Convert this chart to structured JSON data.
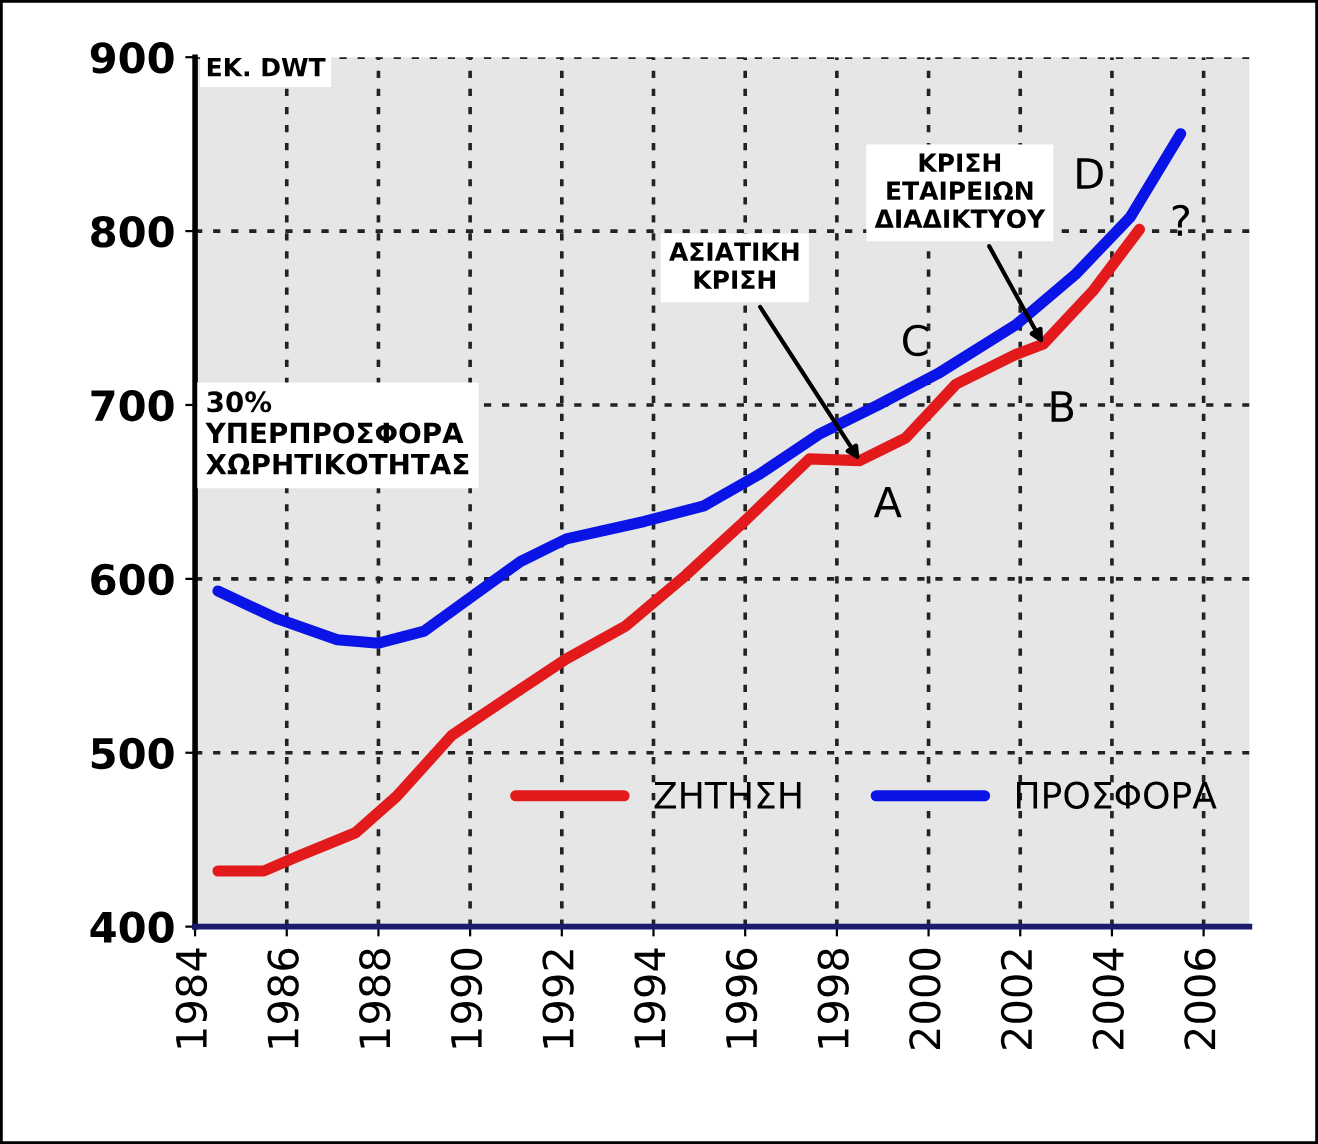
{
  "chart_data": {
    "type": "line",
    "ylabel": "ΕΚ. DWT",
    "xlim": [
      1984,
      2007
    ],
    "ylim": [
      400,
      900
    ],
    "xticks": [
      1984,
      1986,
      1988,
      1990,
      1992,
      1994,
      1996,
      1998,
      2000,
      2002,
      2004,
      2006
    ],
    "yticks": [
      400,
      500,
      600,
      700,
      800,
      900
    ],
    "grid": true,
    "legend": "bottom right",
    "line_style": "solid",
    "marker": "none",
    "series": [
      {
        "name": "ΖΗΤΗΣΗ",
        "color": "#e31a1c",
        "x": [
          1984.5,
          1985.5,
          1986.2,
          1987.5,
          1988.4,
          1989.6,
          1990.9,
          1992.1,
          1993.4,
          1994.7,
          1995.9,
          1997.4,
          1998.5,
          1999.5,
          2000.6,
          2001.9,
          2002.5,
          2003.6,
          2004.6
        ],
        "values": [
          432,
          432,
          440,
          454,
          475,
          510,
          533,
          554,
          573,
          602,
          631,
          669,
          668,
          681,
          712,
          729,
          735,
          766,
          801
        ]
      },
      {
        "name": "ΠΡΟΣΦΟΡΑ",
        "color": "#0a14e6",
        "x": [
          1984.5,
          1985.8,
          1987.1,
          1988,
          1989,
          1990.1,
          1991.1,
          1992.1,
          1993.8,
          1995.1,
          1996.3,
          1997.6,
          1998.9,
          2000.2,
          2001.9,
          2003.2,
          2004.4,
          2005.5
        ],
        "values": [
          593,
          577,
          565,
          563,
          570,
          591,
          610,
          623,
          633,
          642,
          660,
          683,
          700,
          718,
          746,
          775,
          808,
          856
        ]
      }
    ],
    "annotations": [
      "30%\nΥΠΕΡΠΡΟΣΦΟΡΑ\nΧΩΡΗΤΙΚΟΤΗΤΑΣ",
      {
        "text": "ΑΣΙΑΤΙΚΗ\nΚΡΙΣΗ",
        "x": 1998.5,
        "y": 668
      },
      {
        "text": "ΚΡΙΣΗ\nΕΤΑΙΡΕΙΩΝ\nΔΙΑΔΙΚΤΥΟΥ",
        "x": 2002.5,
        "y": 735
      },
      "A",
      "B",
      "C",
      "D",
      "?"
    ]
  }
}
